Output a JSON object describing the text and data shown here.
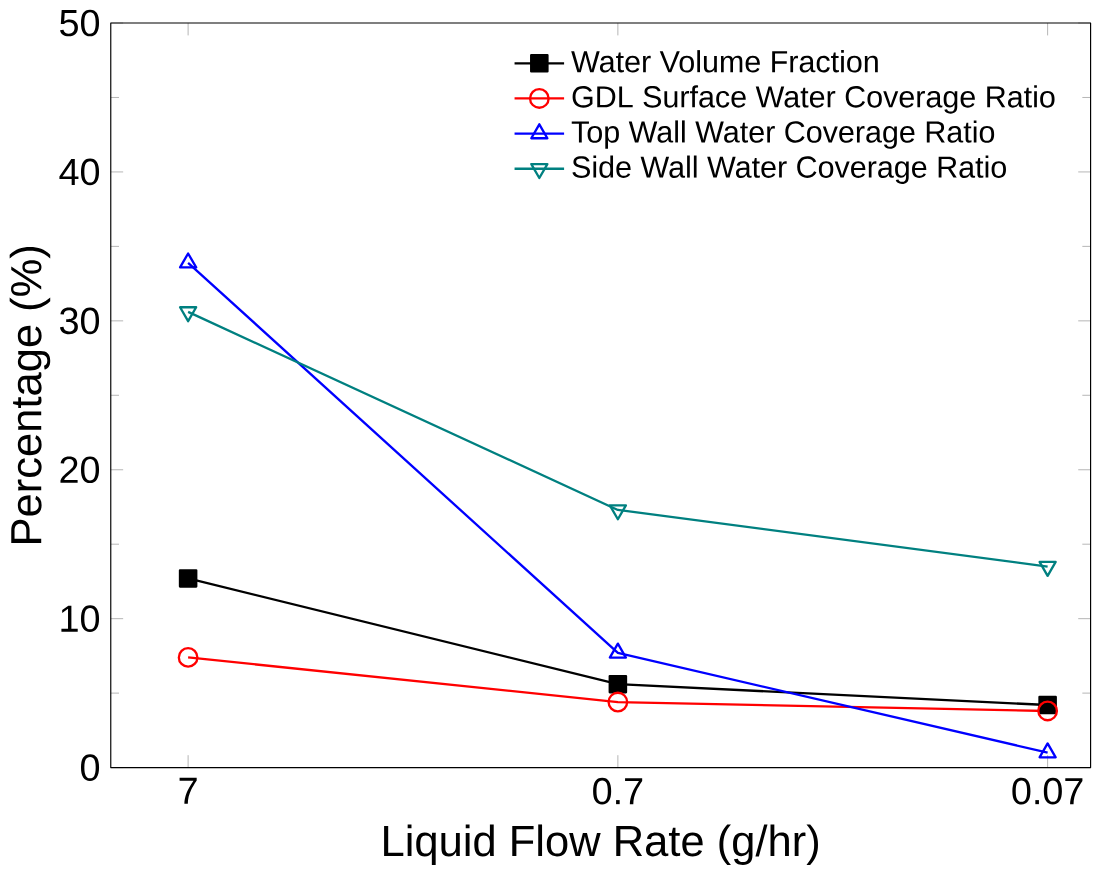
{
  "chart_data": {
    "type": "line",
    "xlabel": "Liquid Flow Rate (g/hr)",
    "ylabel": "Percentage (%)",
    "categories": [
      "7",
      "0.7",
      "0.07"
    ],
    "series": [
      {
        "name": "Water Volume Fraction",
        "color": "#000000",
        "marker": "square",
        "values": [
          12.7,
          5.6,
          4.2
        ]
      },
      {
        "name": "GDL Surface Water Coverage Ratio",
        "color": "#ff0000",
        "marker": "circle",
        "values": [
          7.4,
          4.4,
          3.8
        ]
      },
      {
        "name": "Top Wall Water Coverage Ratio",
        "color": "#0000ff",
        "marker": "triangle",
        "values": [
          33.9,
          7.7,
          1.0
        ]
      },
      {
        "name": "Side Wall Water Coverage Ratio",
        "color": "#008080",
        "marker": "triangle-down",
        "values": [
          30.6,
          17.3,
          13.5
        ]
      }
    ],
    "ylim": [
      0,
      50
    ],
    "yticks": [
      0,
      10,
      20,
      30,
      40,
      50
    ],
    "legend": "top right",
    "grid": false,
    "line_style": "solid"
  }
}
